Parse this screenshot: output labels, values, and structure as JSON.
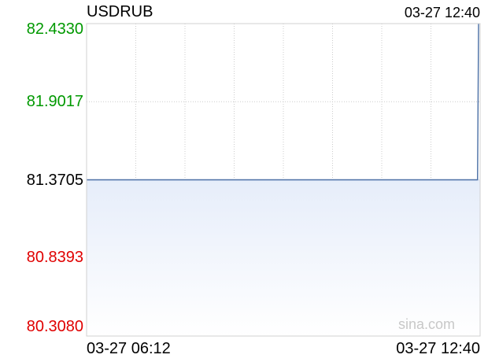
{
  "header": {
    "symbol": "USDRUB",
    "timestamp": "03-27 12:40"
  },
  "watermark": "sina.com",
  "colors": {
    "up": "#009900",
    "down": "#e00000",
    "neutral": "#000000",
    "line": "#4a6fa5",
    "fill": "#e6edfa",
    "grid": "#cccccc"
  },
  "chart_data": {
    "type": "area",
    "title": "USDRUB",
    "xlabel": "",
    "ylabel": "",
    "reference_value": 81.3705,
    "ylim": [
      80.308,
      82.433
    ],
    "y_ticks": [
      "82.4330",
      "81.9017",
      "81.3705",
      "80.8393",
      "80.3080"
    ],
    "x_ticks": [
      "03-27 06:12",
      "03-27 12:40"
    ],
    "grid": true,
    "series": [
      {
        "x": [
          "06:12",
          "12:39",
          "12:40"
        ],
        "values": [
          81.3705,
          81.3705,
          82.433
        ]
      }
    ]
  }
}
